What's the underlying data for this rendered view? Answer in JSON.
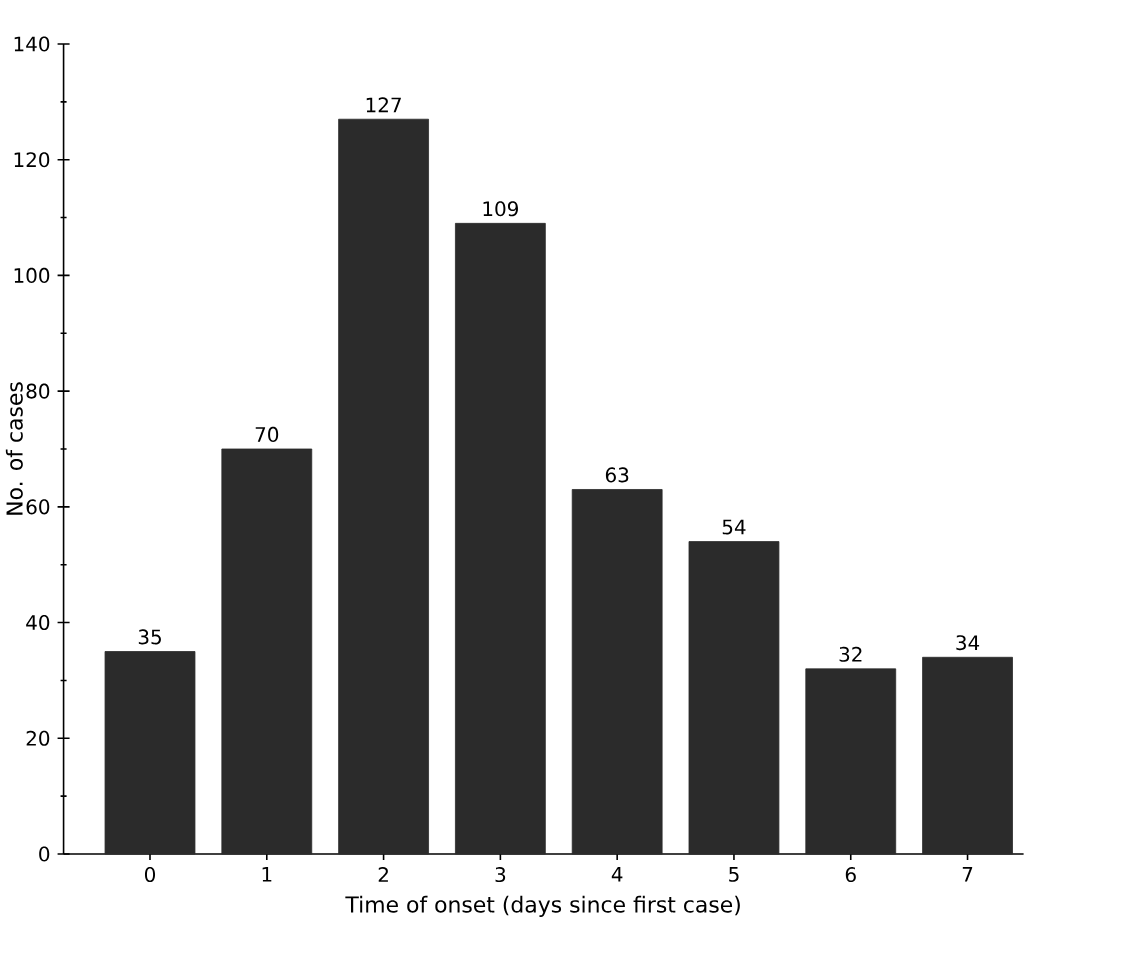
{
  "chart_data": {
    "type": "bar",
    "xlabel": "Time of onset (days since first case)",
    "ylabel": "No. of cases",
    "categories": [
      "0",
      "1",
      "2",
      "3",
      "4",
      "5",
      "6",
      "7"
    ],
    "values": [
      35,
      70,
      127,
      109,
      63,
      54,
      32,
      34
    ],
    "color": "#2b2b2b",
    "ylim": [
      0,
      140
    ],
    "yticks": [
      0,
      20,
      40,
      60,
      80,
      100,
      120,
      140
    ],
    "data_labels": true
  }
}
